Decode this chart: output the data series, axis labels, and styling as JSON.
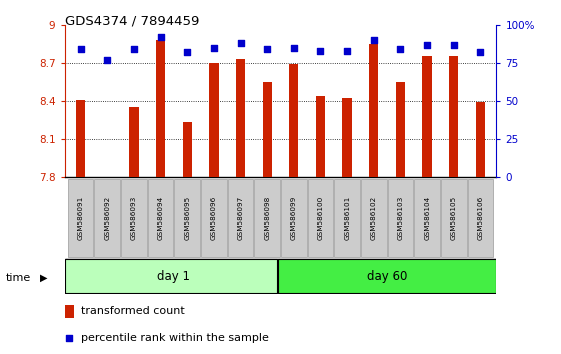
{
  "title": "GDS4374 / 7894459",
  "samples": [
    "GSM586091",
    "GSM586092",
    "GSM586093",
    "GSM586094",
    "GSM586095",
    "GSM586096",
    "GSM586097",
    "GSM586098",
    "GSM586099",
    "GSM586100",
    "GSM586101",
    "GSM586102",
    "GSM586103",
    "GSM586104",
    "GSM586105",
    "GSM586106"
  ],
  "bar_values": [
    8.41,
    7.8,
    8.35,
    8.88,
    8.23,
    8.7,
    8.73,
    8.55,
    8.69,
    8.44,
    8.42,
    8.85,
    8.55,
    8.75,
    8.75,
    8.39
  ],
  "dot_values": [
    84,
    77,
    84,
    92,
    82,
    85,
    88,
    84,
    85,
    83,
    83,
    90,
    84,
    87,
    87,
    82
  ],
  "ylim_left": [
    7.8,
    9.0
  ],
  "ylim_right": [
    0,
    100
  ],
  "yticks_left": [
    7.8,
    8.1,
    8.4,
    8.7,
    9.0
  ],
  "yticks_right": [
    0,
    25,
    50,
    75,
    100
  ],
  "ytick_labels_left": [
    "7.8",
    "8.1",
    "8.4",
    "8.7",
    "9"
  ],
  "ytick_labels_right": [
    "0",
    "25",
    "50",
    "75",
    "100%"
  ],
  "bar_color": "#cc2200",
  "dot_color": "#0000cc",
  "bar_bottom": 7.8,
  "day1_samples": 8,
  "day60_samples": 8,
  "day1_label": "day 1",
  "day60_label": "day 60",
  "group_color_day1": "#bbffbb",
  "group_color_day60": "#44ee44",
  "time_label": "time",
  "left_axis_color": "#cc2200",
  "right_axis_color": "#0000cc",
  "legend_bar_label": "transformed count",
  "legend_dot_label": "percentile rank within the sample",
  "tick_label_bg": "#cccccc",
  "grid_yticks": [
    8.1,
    8.4,
    8.7
  ],
  "bar_width": 0.35
}
